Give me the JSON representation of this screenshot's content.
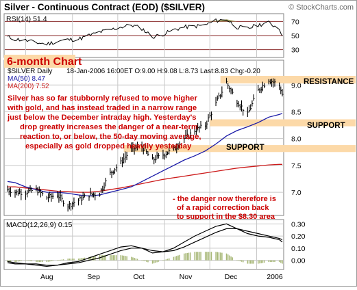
{
  "header": {
    "title": "Silver - Continuous Contract (EOD) ($SILVER)",
    "watermark": "© StockCharts.com"
  },
  "rsi": {
    "label": "RSI(14) 51.4",
    "value": 51.4,
    "levels": [
      70,
      50,
      30
    ],
    "tick_labels": [
      "70",
      "50",
      "30"
    ],
    "ylim": [
      20,
      80
    ]
  },
  "price_panel": {
    "ticker_label": "$SILVER Daily",
    "quote": "18-Jan-2006 16:00ET O:9.00 H:9.08 L:8.73 Last:8.83 Chg:-0.20",
    "ma50_label": "MA(50) 8.47",
    "ma200_label": "MA(200) 7.52",
    "chart_label": "6-month Chart",
    "tick_labels": [
      "9.0",
      "8.5",
      "8.0",
      "7.5",
      "7.0"
    ],
    "ylim": [
      6.58,
      9.45
    ]
  },
  "annotations": {
    "commentary_lines": [
      "Silver has so far stubbornly refused to move higher",
      "with gold, and has instead traded in a narrow range",
      "just below the December intraday high. Yesterday's",
      "drop greatly increases the danger of a near-term",
      "reaction to, or below, the 50-day moving average,",
      "especially as gold dropped heavily yesterday"
    ],
    "resistance": "RESISTANCE",
    "support_1": "SUPPORT",
    "support_2": "SUPPORT",
    "danger_lines": [
      "- the danger now therefore is",
      "of a rapid correction back",
      "to support in the $8.30 area"
    ]
  },
  "macd": {
    "label": "MACD(12,26,9) 0.15",
    "tick_labels": [
      "0.30",
      "0.20",
      "0.10",
      "0.00"
    ],
    "ylim": [
      -0.07,
      0.33
    ]
  },
  "x_axis": {
    "months": [
      "Aug",
      "Sep",
      "Oct",
      "Nov",
      "Dec",
      "2006"
    ]
  },
  "colors": {
    "title": "#000000",
    "annotation_red": "#cc0000",
    "band_fill": "#fcd9a8",
    "ma50": "#1a1aa8",
    "ma200": "#cc1a1a",
    "rsi_line": "#000000",
    "rsi_fill": "#9c9a5a",
    "macd_hist": "#a8b878",
    "grid": "#c8c8c8",
    "panel_border": "#808080"
  },
  "chart_data": {
    "type": "line",
    "x": [
      "2005-07-20",
      "2005-07-25",
      "2005-08-01",
      "2005-08-08",
      "2005-08-15",
      "2005-08-22",
      "2005-08-29",
      "2005-09-05",
      "2005-09-12",
      "2005-09-19",
      "2005-09-26",
      "2005-10-03",
      "2005-10-10",
      "2005-10-17",
      "2005-10-24",
      "2005-10-31",
      "2005-11-07",
      "2005-11-14",
      "2005-11-21",
      "2005-11-28",
      "2005-12-05",
      "2005-12-12",
      "2005-12-19",
      "2005-12-26",
      "2006-01-02",
      "2006-01-09",
      "2006-01-16",
      "2006-01-18"
    ],
    "series": [
      {
        "name": "$SILVER Daily",
        "values": [
          7.05,
          7.0,
          7.0,
          7.05,
          6.9,
          6.95,
          6.75,
          6.85,
          6.95,
          6.98,
          7.35,
          7.55,
          7.8,
          7.85,
          7.6,
          7.7,
          7.8,
          8.0,
          8.15,
          8.25,
          8.65,
          9.05,
          8.7,
          8.45,
          8.9,
          9.1,
          9.0,
          8.83
        ]
      },
      {
        "name": "MA(50)",
        "values": [
          7.2,
          7.18,
          7.1,
          7.05,
          7.0,
          7.0,
          6.98,
          6.95,
          6.93,
          6.95,
          7.0,
          7.05,
          7.1,
          7.2,
          7.3,
          7.4,
          7.5,
          7.6,
          7.68,
          7.77,
          7.9,
          8.05,
          8.15,
          8.22,
          8.3,
          8.4,
          8.45,
          8.47
        ]
      },
      {
        "name": "MA(200)",
        "values": [
          7.1,
          7.1,
          7.08,
          7.06,
          7.04,
          7.02,
          7.01,
          7.0,
          7.0,
          7.02,
          7.05,
          7.08,
          7.12,
          7.16,
          7.2,
          7.24,
          7.27,
          7.3,
          7.33,
          7.36,
          7.39,
          7.42,
          7.45,
          7.47,
          7.49,
          7.51,
          7.52,
          7.52
        ]
      },
      {
        "name": "RSI(14)",
        "values": [
          48,
          45,
          43,
          40,
          38,
          42,
          44,
          45,
          50,
          55,
          58,
          62,
          65,
          60,
          48,
          52,
          58,
          62,
          63,
          65,
          71,
          73,
          62,
          60,
          65,
          68,
          60,
          51.4
        ]
      },
      {
        "name": "MACD",
        "values": [
          -0.02,
          -0.03,
          -0.03,
          -0.04,
          -0.05,
          -0.04,
          -0.02,
          -0.01,
          0.02,
          0.05,
          0.08,
          0.11,
          0.12,
          0.1,
          0.06,
          0.07,
          0.1,
          0.15,
          0.2,
          0.24,
          0.28,
          0.3,
          0.26,
          0.22,
          0.2,
          0.19,
          0.17,
          0.15
        ]
      },
      {
        "name": "Signal",
        "values": [
          -0.01,
          -0.02,
          -0.03,
          -0.03,
          -0.04,
          -0.04,
          -0.03,
          -0.02,
          0.0,
          0.02,
          0.05,
          0.08,
          0.1,
          0.1,
          0.08,
          0.07,
          0.08,
          0.11,
          0.15,
          0.19,
          0.23,
          0.26,
          0.26,
          0.24,
          0.22,
          0.2,
          0.18,
          0.17
        ]
      }
    ],
    "ylim": [
      6.58,
      9.45
    ],
    "bands": [
      {
        "label": "RESISTANCE",
        "low": 9.03,
        "high": 9.17
      },
      {
        "label": "SUPPORT",
        "low": 8.23,
        "high": 8.36
      },
      {
        "label": "SUPPORT",
        "low": 7.75,
        "high": 7.88
      }
    ]
  }
}
